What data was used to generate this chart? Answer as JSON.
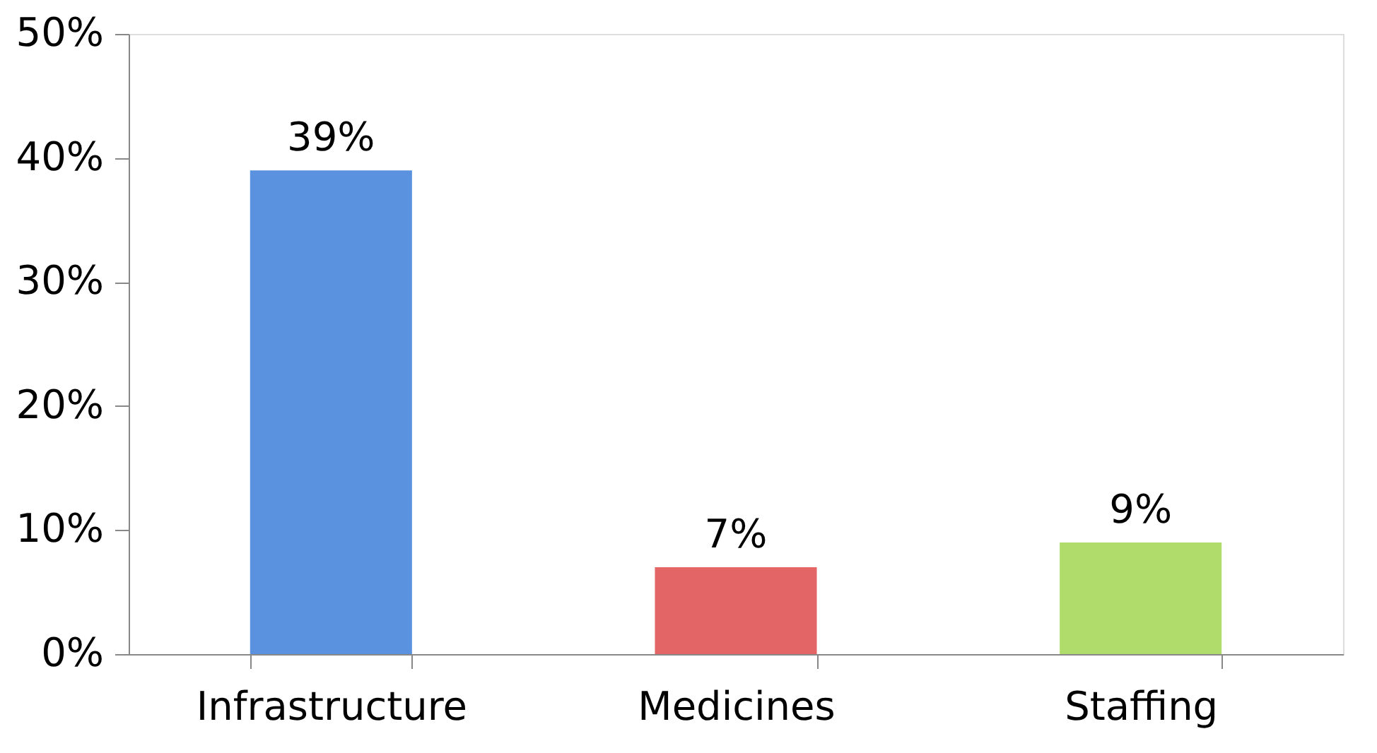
{
  "chart_data": {
    "type": "bar",
    "categories": [
      "Infrastructure",
      "Medicines",
      "Staffing"
    ],
    "values": [
      39,
      7,
      9
    ],
    "colors": [
      "#5b92e0",
      "#e46565",
      "#b0dc6c"
    ],
    "value_labels": [
      "39%",
      "7%",
      "9%"
    ],
    "ylim": [
      0,
      50
    ],
    "yticks": [
      {
        "value": 0,
        "label": "0%"
      },
      {
        "value": 10,
        "label": "10%"
      },
      {
        "value": 20,
        "label": "20%"
      },
      {
        "value": 30,
        "label": "30%"
      },
      {
        "value": 40,
        "label": "40%"
      },
      {
        "value": 50,
        "label": "50%"
      }
    ],
    "grid": false
  }
}
